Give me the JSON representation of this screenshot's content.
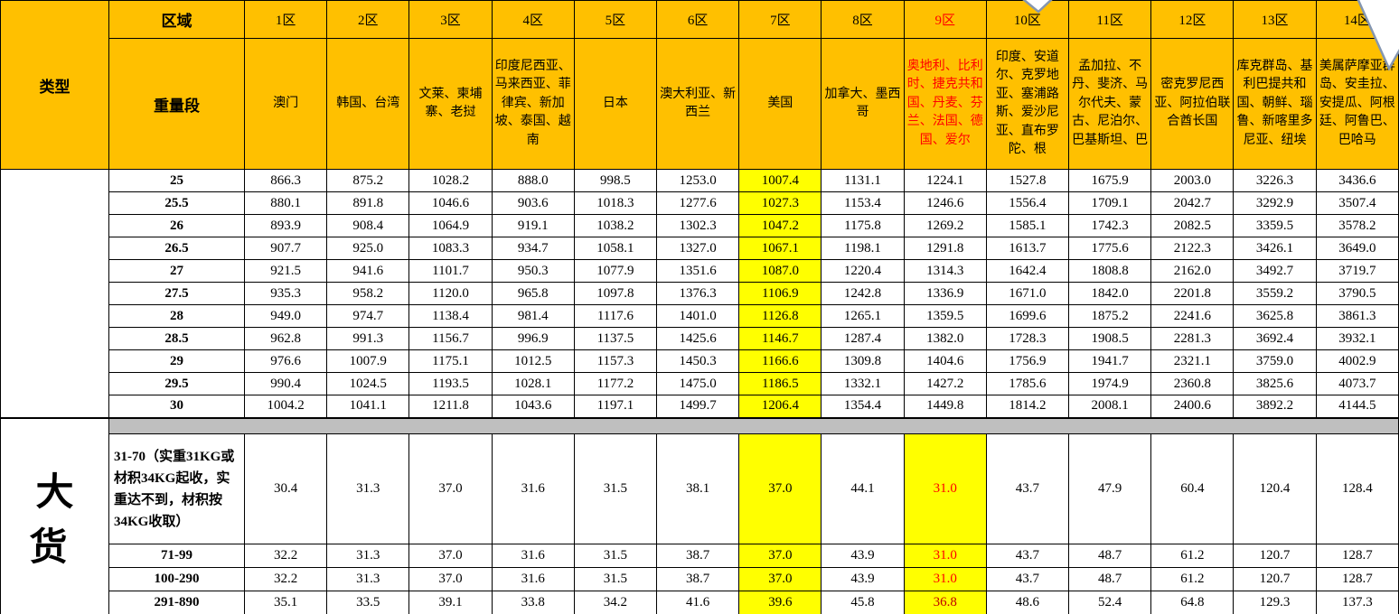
{
  "colors": {
    "header_bg": "#FFC000",
    "highlight_bg": "#FFFF00",
    "red_text": "#FF0000",
    "dark_red_text": "#C00000",
    "separator_bg": "#BFBFBF",
    "border": "#000000",
    "shape_outline": "#8496B0"
  },
  "header": {
    "type_label": "类型",
    "region_label": "区域",
    "weight_label": "重量段",
    "zones": [
      {
        "label": "1区",
        "countries": "澳门",
        "red": false
      },
      {
        "label": "2区",
        "countries": "韩国、台湾",
        "red": false
      },
      {
        "label": "3区",
        "countries": "文莱、柬埔寨、老挝",
        "red": false
      },
      {
        "label": "4区",
        "countries": "印度尼西亚、马来西亚、菲律宾、新加坡、泰国、越南",
        "red": false
      },
      {
        "label": "5区",
        "countries": "日本",
        "red": false
      },
      {
        "label": "6区",
        "countries": "澳大利亚、新西兰",
        "red": false
      },
      {
        "label": "7区",
        "countries": "美国",
        "red": false
      },
      {
        "label": "8区",
        "countries": "加拿大、墨西哥",
        "red": false
      },
      {
        "label": "9区",
        "countries": "奥地利、比利时、捷克共和国、丹麦、芬兰、法国、德国、爱尔",
        "red": true
      },
      {
        "label": "10区",
        "countries": "印度、安道尔、克罗地亚、塞浦路斯、爱沙尼亚、直布罗陀、根",
        "red": false
      },
      {
        "label": "11区",
        "countries": "孟加拉、不丹、斐济、马尔代夫、蒙古、尼泊尔、巴基斯坦、巴",
        "red": false
      },
      {
        "label": "12区",
        "countries": "密克罗尼西亚、阿拉伯联合酋长国",
        "red": false
      },
      {
        "label": "13区",
        "countries": "库克群岛、基利巴提共和国、朝鲜、瑙鲁、新喀里多尼亚、纽埃",
        "red": false
      },
      {
        "label": "14区",
        "countries": "美属萨摩亚群岛、安圭拉、安提瓜、阿根廷、阿鲁巴、巴哈马",
        "red": false
      }
    ]
  },
  "sections": [
    {
      "name": "standard-rates",
      "rows": [
        {
          "label": "25",
          "values": [
            "866.3",
            "875.2",
            "1028.2",
            "888.0",
            "998.5",
            "1253.0",
            "1007.4",
            "1131.1",
            "1224.1",
            "1527.8",
            "1675.9",
            "2003.0",
            "3226.3",
            "3436.6"
          ]
        },
        {
          "label": "25.5",
          "values": [
            "880.1",
            "891.8",
            "1046.6",
            "903.6",
            "1018.3",
            "1277.6",
            "1027.3",
            "1153.4",
            "1246.6",
            "1556.4",
            "1709.1",
            "2042.7",
            "3292.9",
            "3507.4"
          ]
        },
        {
          "label": "26",
          "values": [
            "893.9",
            "908.4",
            "1064.9",
            "919.1",
            "1038.2",
            "1302.3",
            "1047.2",
            "1175.8",
            "1269.2",
            "1585.1",
            "1742.3",
            "2082.5",
            "3359.5",
            "3578.2"
          ]
        },
        {
          "label": "26.5",
          "values": [
            "907.7",
            "925.0",
            "1083.3",
            "934.7",
            "1058.1",
            "1327.0",
            "1067.1",
            "1198.1",
            "1291.8",
            "1613.7",
            "1775.6",
            "2122.3",
            "3426.1",
            "3649.0"
          ]
        },
        {
          "label": "27",
          "values": [
            "921.5",
            "941.6",
            "1101.7",
            "950.3",
            "1077.9",
            "1351.6",
            "1087.0",
            "1220.4",
            "1314.3",
            "1642.4",
            "1808.8",
            "2162.0",
            "3492.7",
            "3719.7"
          ]
        },
        {
          "label": "27.5",
          "values": [
            "935.3",
            "958.2",
            "1120.0",
            "965.8",
            "1097.8",
            "1376.3",
            "1106.9",
            "1242.8",
            "1336.9",
            "1671.0",
            "1842.0",
            "2201.8",
            "3559.2",
            "3790.5"
          ]
        },
        {
          "label": "28",
          "values": [
            "949.0",
            "974.7",
            "1138.4",
            "981.4",
            "1117.6",
            "1401.0",
            "1126.8",
            "1265.1",
            "1359.5",
            "1699.6",
            "1875.2",
            "2241.6",
            "3625.8",
            "3861.3"
          ]
        },
        {
          "label": "28.5",
          "values": [
            "962.8",
            "991.3",
            "1156.7",
            "996.9",
            "1137.5",
            "1425.6",
            "1146.7",
            "1287.4",
            "1382.0",
            "1728.3",
            "1908.5",
            "2281.3",
            "3692.4",
            "3932.1"
          ]
        },
        {
          "label": "29",
          "values": [
            "976.6",
            "1007.9",
            "1175.1",
            "1012.5",
            "1157.3",
            "1450.3",
            "1166.6",
            "1309.8",
            "1404.6",
            "1756.9",
            "1941.7",
            "2321.1",
            "3759.0",
            "4002.9"
          ]
        },
        {
          "label": "29.5",
          "values": [
            "990.4",
            "1024.5",
            "1193.5",
            "1028.1",
            "1177.2",
            "1475.0",
            "1186.5",
            "1332.1",
            "1427.2",
            "1785.6",
            "1974.9",
            "2360.8",
            "3825.6",
            "4073.7"
          ]
        },
        {
          "label": "30",
          "values": [
            "1004.2",
            "1041.1",
            "1211.8",
            "1043.6",
            "1197.1",
            "1499.7",
            "1206.4",
            "1354.4",
            "1449.8",
            "1814.2",
            "2008.1",
            "2400.6",
            "3892.2",
            "4144.5"
          ]
        }
      ]
    },
    {
      "name": "large-cargo",
      "label": "大货",
      "rows": [
        {
          "label": "31-70（实重31KG或材积34KG起收，实重达不到，材积按34KG收取）",
          "values": [
            "30.4",
            "31.3",
            "37.0",
            "31.6",
            "31.5",
            "38.1",
            "37.0",
            "44.1",
            "31.0",
            "43.7",
            "47.9",
            "60.4",
            "120.4",
            "128.4"
          ]
        },
        {
          "label": "71-99",
          "values": [
            "32.2",
            "31.3",
            "37.0",
            "31.6",
            "31.5",
            "38.7",
            "37.0",
            "43.9",
            "31.0",
            "43.7",
            "48.7",
            "61.2",
            "120.7",
            "128.7"
          ]
        },
        {
          "label": "100-290",
          "values": [
            "32.2",
            "31.3",
            "37.0",
            "31.6",
            "31.5",
            "38.7",
            "37.0",
            "43.9",
            "31.0",
            "43.7",
            "48.7",
            "61.2",
            "120.7",
            "128.7"
          ]
        },
        {
          "label": "291-890",
          "values": [
            "35.1",
            "33.5",
            "39.1",
            "33.8",
            "34.2",
            "41.6",
            "39.6",
            "45.8",
            "36.8",
            "48.6",
            "52.4",
            "64.8",
            "129.3",
            "137.3"
          ]
        }
      ]
    }
  ],
  "highlighting": {
    "upper_highlight_cols": [
      6
    ],
    "lower_highlight_cols": [
      6,
      8
    ],
    "lower_red_col": 8,
    "lower_red_rows": [
      0,
      1,
      2
    ],
    "lower_darkred_rows": [
      3
    ]
  }
}
